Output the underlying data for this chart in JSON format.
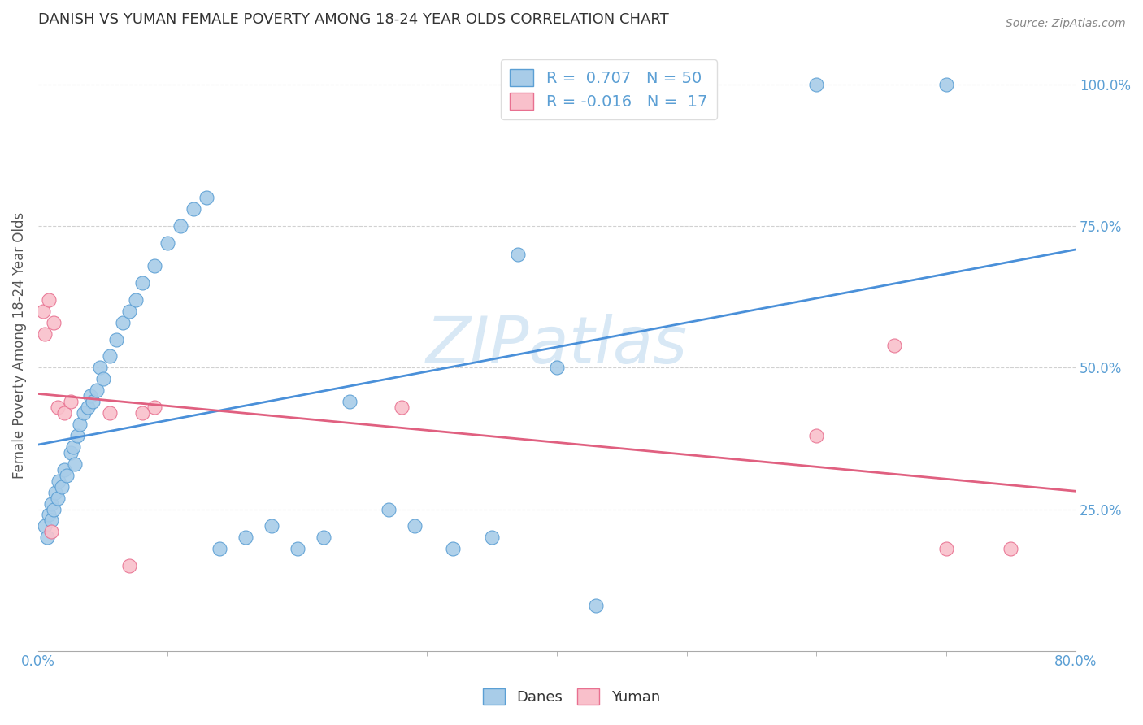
{
  "title": "DANISH VS YUMAN FEMALE POVERTY AMONG 18-24 YEAR OLDS CORRELATION CHART",
  "source": "Source: ZipAtlas.com",
  "ylabel": "Female Poverty Among 18-24 Year Olds",
  "danes_R": "0.707",
  "danes_N": "50",
  "yuman_R": "-0.016",
  "yuman_N": "17",
  "blue_scatter_color": "#a8cce8",
  "blue_edge_color": "#5b9fd4",
  "pink_scatter_color": "#f9c0cb",
  "pink_edge_color": "#e87090",
  "line_blue": "#4a90d9",
  "line_pink": "#e06080",
  "watermark_color": "#d8e8f5",
  "danes_x": [
    0.005,
    0.007,
    0.008,
    0.01,
    0.01,
    0.012,
    0.013,
    0.015,
    0.016,
    0.018,
    0.02,
    0.022,
    0.025,
    0.027,
    0.028,
    0.03,
    0.032,
    0.035,
    0.038,
    0.04,
    0.042,
    0.045,
    0.048,
    0.05,
    0.055,
    0.06,
    0.065,
    0.07,
    0.075,
    0.08,
    0.09,
    0.1,
    0.11,
    0.12,
    0.13,
    0.14,
    0.16,
    0.18,
    0.2,
    0.22,
    0.24,
    0.27,
    0.29,
    0.32,
    0.35,
    0.37,
    0.4,
    0.43,
    0.6,
    0.7
  ],
  "danes_y": [
    0.22,
    0.2,
    0.24,
    0.23,
    0.26,
    0.25,
    0.28,
    0.27,
    0.3,
    0.29,
    0.32,
    0.31,
    0.35,
    0.36,
    0.33,
    0.38,
    0.4,
    0.42,
    0.43,
    0.45,
    0.44,
    0.46,
    0.5,
    0.48,
    0.52,
    0.55,
    0.58,
    0.6,
    0.62,
    0.65,
    0.68,
    0.72,
    0.75,
    0.78,
    0.8,
    0.18,
    0.2,
    0.22,
    0.18,
    0.2,
    0.44,
    0.25,
    0.22,
    0.18,
    0.2,
    0.7,
    0.5,
    0.08,
    1.0,
    1.0
  ],
  "yuman_x": [
    0.004,
    0.005,
    0.008,
    0.01,
    0.012,
    0.015,
    0.02,
    0.025,
    0.055,
    0.07,
    0.08,
    0.09,
    0.28,
    0.6,
    0.66,
    0.7,
    0.75
  ],
  "yuman_y": [
    0.6,
    0.56,
    0.62,
    0.21,
    0.58,
    0.43,
    0.42,
    0.44,
    0.42,
    0.15,
    0.42,
    0.43,
    0.43,
    0.38,
    0.54,
    0.18,
    0.18
  ],
  "xlim": [
    0.0,
    0.8
  ],
  "ylim": [
    0.0,
    1.08
  ],
  "background_color": "#ffffff",
  "grid_color": "#cccccc",
  "tick_color": "#5b9fd4",
  "title_fontsize": 13,
  "tick_fontsize": 12,
  "ylabel_fontsize": 12
}
